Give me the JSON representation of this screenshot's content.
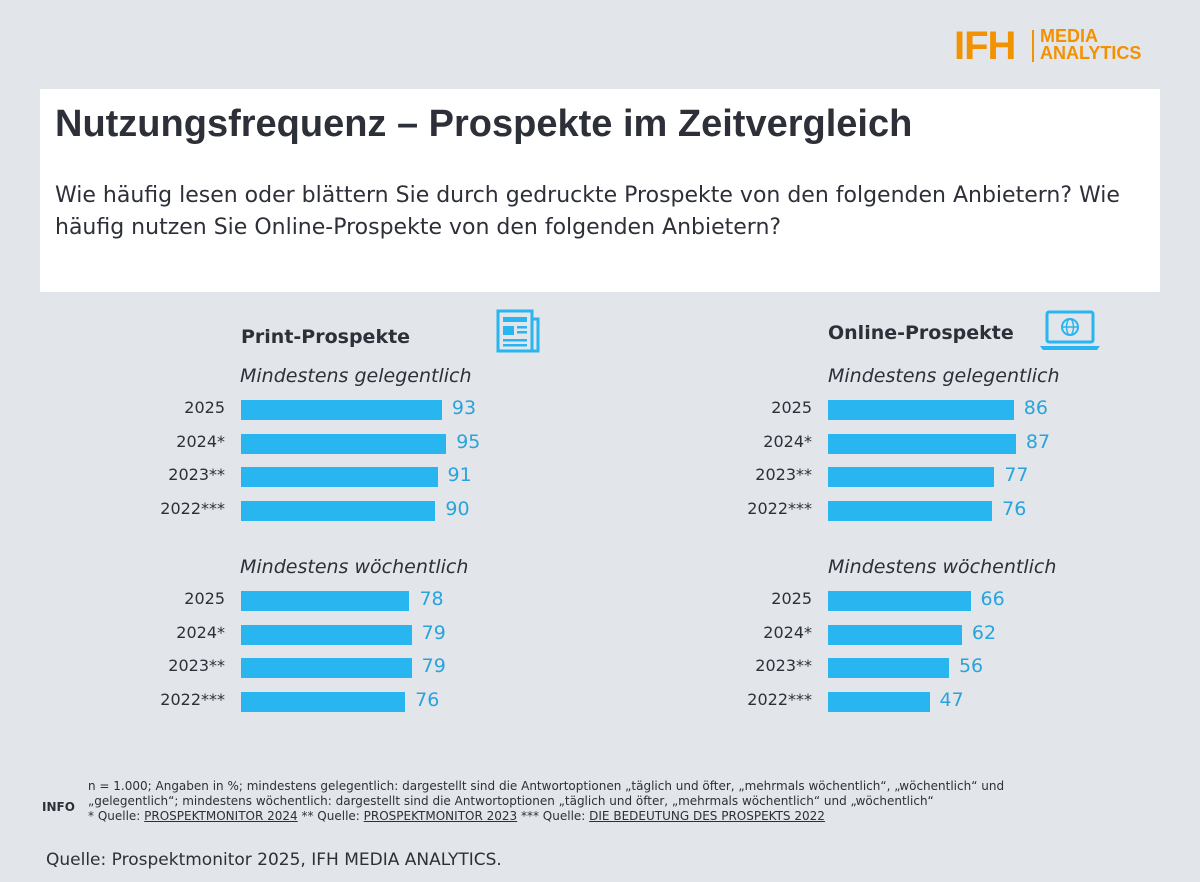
{
  "logo": {
    "ifh": "IFH",
    "line1": "MEDIA",
    "line2": "ANALYTICS",
    "color": "#f39200"
  },
  "header": {
    "title": "Nutzungsfrequenz – Prospekte im Zeitvergleich",
    "subtitle": "Wie häufig lesen oder blättern Sie durch gedruckte Prospekte von den folgenden Anbietern? Wie häufig nutzen Sie Online-Prospekte von den folgenden Anbietern?"
  },
  "colors": {
    "bar": "#29b5f0",
    "value": "#29a3dc",
    "background": "#e2e5e9"
  },
  "chart_data": [
    {
      "type": "bar",
      "orientation": "horizontal",
      "title": "Print-Prospekte",
      "icon": "newspaper-icon",
      "xlim": [
        0,
        100
      ],
      "groups": [
        {
          "label": "Mindestens gelegentlich",
          "categories": [
            "2025",
            "2024*",
            "2023**",
            "2022***"
          ],
          "values": [
            93,
            95,
            91,
            90
          ]
        },
        {
          "label": "Mindestens wöchentlich",
          "categories": [
            "2025",
            "2024*",
            "2023**",
            "2022***"
          ],
          "values": [
            78,
            79,
            79,
            76
          ]
        }
      ]
    },
    {
      "type": "bar",
      "orientation": "horizontal",
      "title": "Online-Prospekte",
      "icon": "laptop-globe-icon",
      "xlim": [
        0,
        100
      ],
      "groups": [
        {
          "label": "Mindestens gelegentlich",
          "categories": [
            "2025",
            "2024*",
            "2023**",
            "2022***"
          ],
          "values": [
            86,
            87,
            77,
            76
          ]
        },
        {
          "label": "Mindestens wöchentlich",
          "categories": [
            "2025",
            "2024*",
            "2023**",
            "2022***"
          ],
          "values": [
            66,
            62,
            56,
            47
          ]
        }
      ]
    }
  ],
  "footnotes": {
    "info_label": "INFO",
    "line1": "n = 1.000; Angaben in %; mindestens gelegentlich: dargestellt sind die Antwortoptionen „täglich und öfter, „mehrmals wöchentlich“, „wöchentlich“ und",
    "line2": "„gelegentlich“; mindestens wöchentlich: dargestellt sind die Antwortoptionen „täglich und öfter, „mehrmals wöchentlich“ und „wöchentlich“",
    "ref1_prefix": "* Quelle: ",
    "ref1": "PROSPEKTMONITOR 2024",
    "ref2_prefix": " ** Quelle: ",
    "ref2": "PROSPEKTMONITOR 2023",
    "ref3_prefix": " *** Quelle: ",
    "ref3": "DIE BEDEUTUNG DES PROSPEKTS 2022"
  },
  "source": "Quelle: Prospektmonitor 2025, IFH MEDIA ANALYTICS."
}
